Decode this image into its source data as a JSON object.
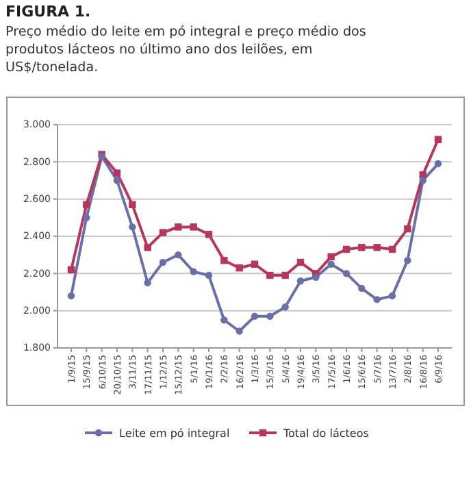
{
  "chart_data": {
    "type": "line",
    "title": "FIGURA 1.",
    "subtitle": "Preço médio do leite em pó integral e preço médio dos produtos lácteos no último ano dos leilões, em US$/tonelada.",
    "categories": [
      "1/9/15",
      "15/9/15",
      "6/10/15",
      "20/10/15",
      "3/11/15",
      "17/11/15",
      "1/12/15",
      "15/12/15",
      "5/1/16",
      "19/1/16",
      "2/2/16",
      "16/2/16",
      "1/3/16",
      "15/3/16",
      "5/4/16",
      "19/4/16",
      "3/5/16",
      "17/5/16",
      "1/6/16",
      "15/6/16",
      "5/7/16",
      "13/7/16",
      "2/8/16",
      "16/8/16",
      "6/9/16"
    ],
    "series": [
      {
        "name": "Leite em pó integral",
        "color": "#6a6fa8",
        "marker": "circle",
        "values": [
          2080,
          2500,
          2830,
          2700,
          2450,
          2150,
          2260,
          2300,
          2210,
          2190,
          1950,
          1890,
          1970,
          1970,
          2020,
          2160,
          2180,
          2250,
          2200,
          2120,
          2060,
          2080,
          2270,
          2700,
          2790
        ]
      },
      {
        "name": "Total do lácteos",
        "color": "#b5365f",
        "marker": "square",
        "values": [
          2220,
          2570,
          2840,
          2740,
          2570,
          2340,
          2420,
          2450,
          2450,
          2410,
          2270,
          2230,
          2250,
          2190,
          2190,
          2260,
          2200,
          2290,
          2330,
          2340,
          2340,
          2330,
          2440,
          2730,
          2920
        ]
      }
    ],
    "ylim": [
      1800,
      3000
    ],
    "yticks": [
      {
        "value": 1800,
        "label": "1.800"
      },
      {
        "value": 2000,
        "label": "2.000"
      },
      {
        "value": 2200,
        "label": "2.200"
      },
      {
        "value": 2400,
        "label": "2.400"
      },
      {
        "value": 2600,
        "label": "2.600"
      },
      {
        "value": 2800,
        "label": "2.800"
      },
      {
        "value": 3000,
        "label": "3.000"
      }
    ],
    "grid": "y",
    "legend": "bottom",
    "line_style": "solid"
  }
}
